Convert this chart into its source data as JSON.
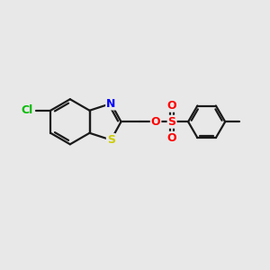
{
  "background_color": "#e8e8e8",
  "bond_color": "#1a1a1a",
  "cl_color": "#00bb00",
  "n_color": "#0000ff",
  "s_ring_color": "#cccc00",
  "s_sulfonyl_color": "#ff0000",
  "o_color": "#ff0000",
  "line_width": 1.6,
  "figsize": [
    3.0,
    3.0
  ],
  "dpi": 100,
  "xlim": [
    0,
    10
  ],
  "ylim": [
    0,
    10
  ]
}
